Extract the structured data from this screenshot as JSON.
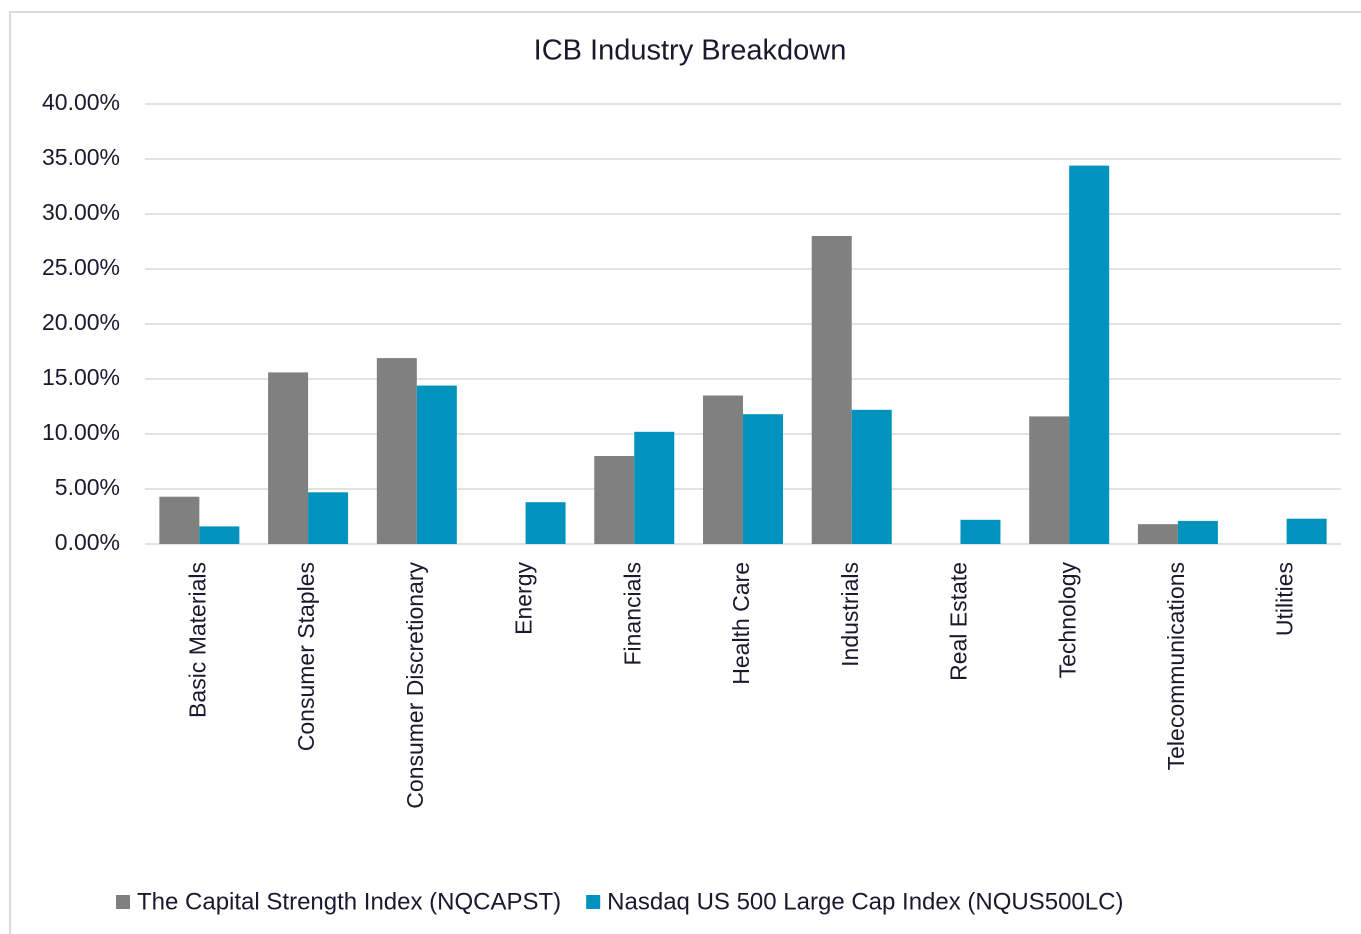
{
  "chart_data": {
    "type": "bar",
    "title": "ICB Industry Breakdown",
    "categories": [
      "Basic Materials",
      "Consumer Staples",
      "Consumer Discretionary",
      "Energy",
      "Financials",
      "Health Care",
      "Industrials",
      "Real Estate",
      "Technology",
      "Telecommunications",
      "Utilities"
    ],
    "series": [
      {
        "name": "The Capital Strength Index (NQCAPST)",
        "color": "#808080",
        "values": [
          4.3,
          15.6,
          16.9,
          0,
          8.0,
          13.5,
          28.0,
          0,
          11.6,
          1.8,
          0
        ]
      },
      {
        "name": "Nasdaq US 500 Large Cap Index (NQUS500LC)",
        "color": "#0093bd",
        "values": [
          1.6,
          4.7,
          14.4,
          3.8,
          10.2,
          11.8,
          12.2,
          2.2,
          34.4,
          2.1,
          2.3
        ]
      }
    ],
    "ylim": [
      0,
      40
    ],
    "yticks": [
      {
        "value": 0,
        "label": "0.00%"
      },
      {
        "value": 5,
        "label": "5.00%"
      },
      {
        "value": 10,
        "label": "10.00%"
      },
      {
        "value": 15,
        "label": "15.00%"
      },
      {
        "value": 20,
        "label": "20.00%"
      },
      {
        "value": 25,
        "label": "25.00%"
      },
      {
        "value": 30,
        "label": "30.00%"
      },
      {
        "value": 35,
        "label": "35.00%"
      },
      {
        "value": 40,
        "label": "40.00%"
      }
    ],
    "grid": true,
    "legend": "bottom"
  }
}
